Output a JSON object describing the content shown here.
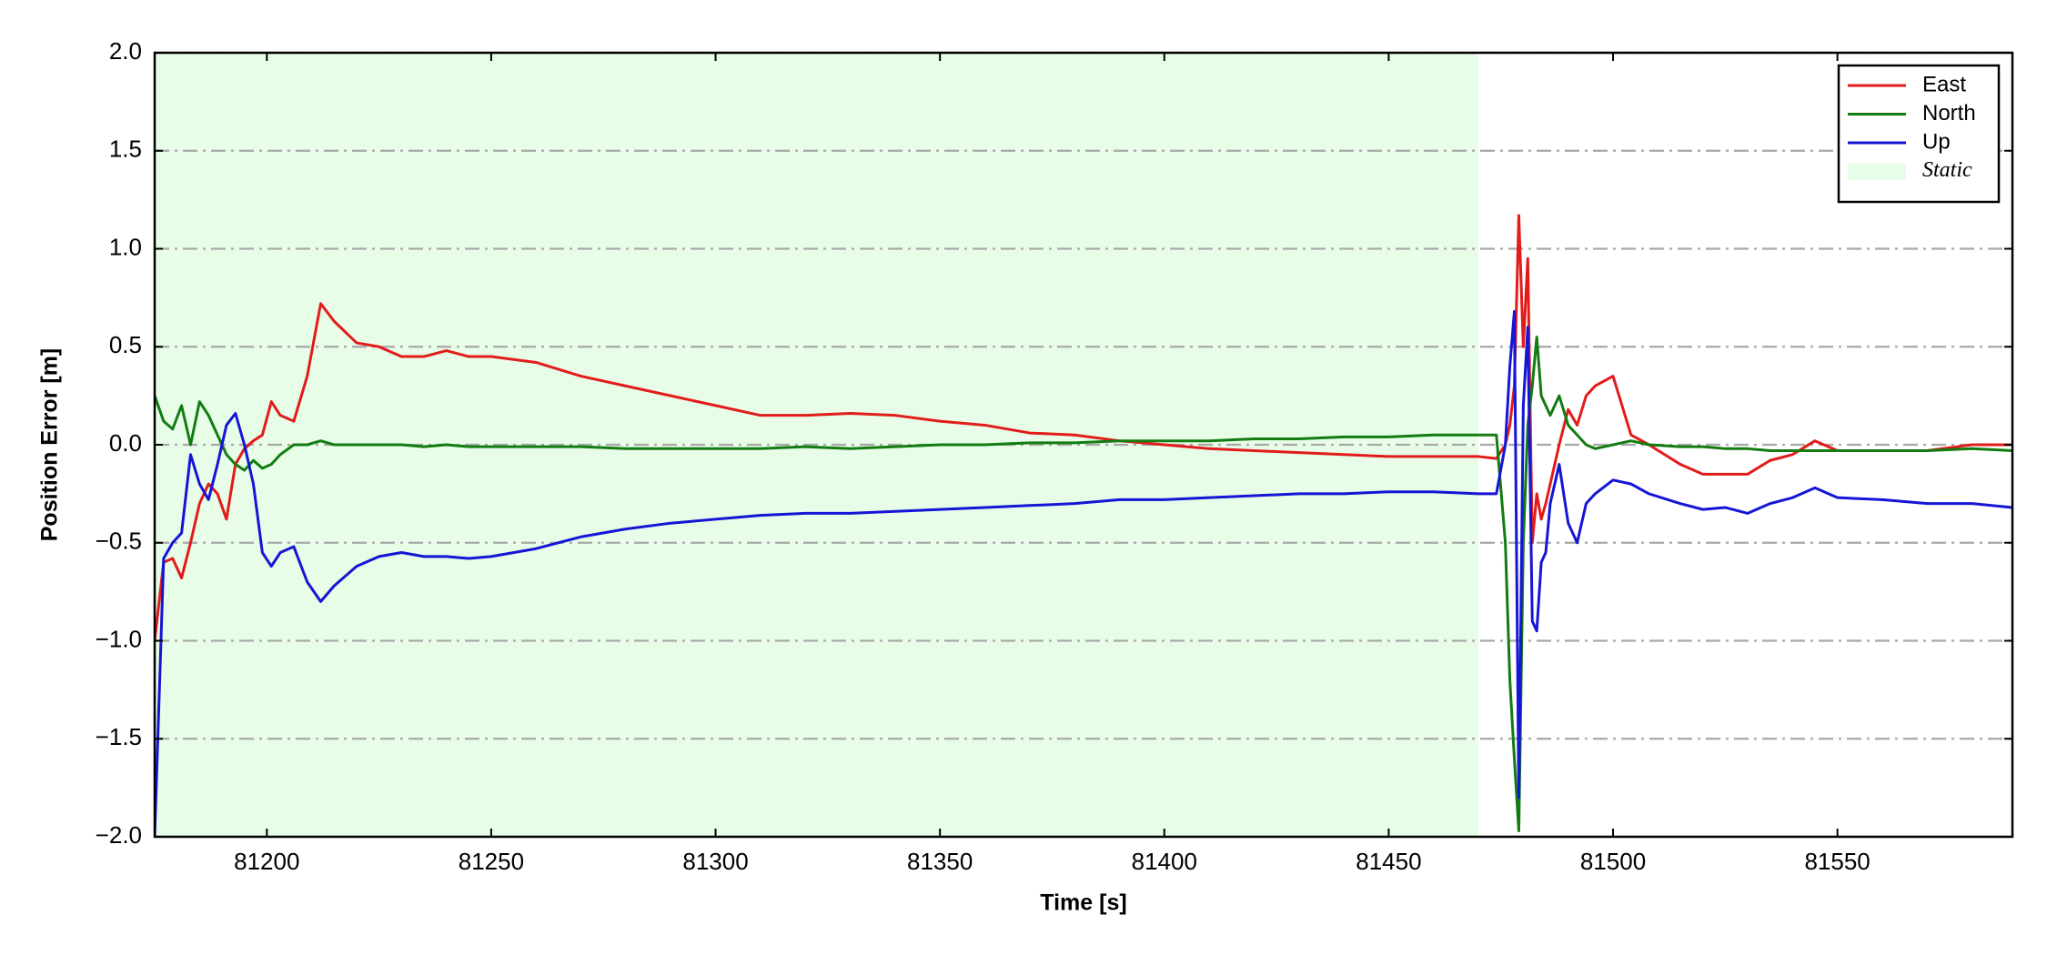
{
  "chart_data": {
    "type": "line",
    "xlabel": "Time [s]",
    "ylabel": "Position Error [m]",
    "x": [
      81175,
      81177,
      81179,
      81181,
      81183,
      81185,
      81187,
      81189,
      81191,
      81193,
      81195,
      81197,
      81199,
      81201,
      81203,
      81206,
      81209,
      81212,
      81215,
      81220,
      81225,
      81230,
      81235,
      81240,
      81245,
      81250,
      81260,
      81270,
      81280,
      81290,
      81300,
      81310,
      81320,
      81330,
      81340,
      81350,
      81360,
      81370,
      81380,
      81390,
      81400,
      81410,
      81420,
      81430,
      81440,
      81450,
      81460,
      81470,
      81474,
      81476,
      81477,
      81478,
      81479,
      81480,
      81481,
      81482,
      81483,
      81484,
      81485,
      81486,
      81488,
      81490,
      81492,
      81494,
      81496,
      81500,
      81504,
      81508,
      81515,
      81520,
      81525,
      81530,
      81535,
      81540,
      81545,
      81550,
      81560,
      81570,
      81580,
      81589
    ],
    "series": [
      {
        "name": "East",
        "color": "#e21b1b",
        "values": [
          -1.0,
          -0.6,
          -0.58,
          -0.68,
          -0.5,
          -0.3,
          -0.2,
          -0.25,
          -0.38,
          -0.1,
          -0.02,
          0.02,
          0.05,
          0.22,
          0.15,
          0.12,
          0.35,
          0.72,
          0.63,
          0.52,
          0.5,
          0.45,
          0.45,
          0.48,
          0.45,
          0.45,
          0.42,
          0.35,
          0.3,
          0.25,
          0.2,
          0.15,
          0.15,
          0.16,
          0.15,
          0.12,
          0.1,
          0.06,
          0.05,
          0.02,
          0.0,
          -0.02,
          -0.03,
          -0.04,
          -0.05,
          -0.06,
          -0.06,
          -0.06,
          -0.07,
          0.0,
          0.1,
          0.3,
          1.17,
          0.5,
          0.95,
          -0.5,
          -0.25,
          -0.38,
          -0.3,
          -0.2,
          0.0,
          0.18,
          0.1,
          0.25,
          0.3,
          0.35,
          0.05,
          0.0,
          -0.1,
          -0.15,
          -0.15,
          -0.15,
          -0.08,
          -0.05,
          0.02,
          -0.03,
          -0.03,
          -0.03,
          0.0,
          0.0
        ]
      },
      {
        "name": "North",
        "color": "#127c12",
        "values": [
          0.25,
          0.12,
          0.08,
          0.2,
          0.0,
          0.22,
          0.15,
          0.05,
          -0.05,
          -0.1,
          -0.13,
          -0.08,
          -0.12,
          -0.1,
          -0.05,
          0.0,
          0.0,
          0.02,
          0.0,
          0.0,
          0.0,
          0.0,
          -0.01,
          0.0,
          -0.01,
          -0.01,
          -0.01,
          -0.01,
          -0.02,
          -0.02,
          -0.02,
          -0.02,
          -0.01,
          -0.02,
          -0.01,
          0.0,
          0.0,
          0.01,
          0.01,
          0.02,
          0.02,
          0.02,
          0.03,
          0.03,
          0.04,
          0.04,
          0.05,
          0.05,
          0.05,
          -0.5,
          -1.2,
          -1.6,
          -1.97,
          -0.5,
          0.1,
          0.3,
          0.55,
          0.25,
          0.2,
          0.15,
          0.25,
          0.1,
          0.05,
          0.0,
          -0.02,
          0.0,
          0.02,
          0.0,
          -0.01,
          -0.01,
          -0.02,
          -0.02,
          -0.03,
          -0.03,
          -0.03,
          -0.03,
          -0.03,
          -0.03,
          -0.02,
          -0.03
        ]
      },
      {
        "name": "Up",
        "color": "#1515d6",
        "values": [
          -2.0,
          -0.58,
          -0.5,
          -0.45,
          -0.05,
          -0.2,
          -0.28,
          -0.1,
          0.1,
          0.16,
          0.0,
          -0.2,
          -0.55,
          -0.62,
          -0.55,
          -0.52,
          -0.7,
          -0.8,
          -0.72,
          -0.62,
          -0.57,
          -0.55,
          -0.57,
          -0.57,
          -0.58,
          -0.57,
          -0.53,
          -0.47,
          -0.43,
          -0.4,
          -0.38,
          -0.36,
          -0.35,
          -0.35,
          -0.34,
          -0.33,
          -0.32,
          -0.31,
          -0.3,
          -0.28,
          -0.28,
          -0.27,
          -0.26,
          -0.25,
          -0.25,
          -0.24,
          -0.24,
          -0.25,
          -0.25,
          0.0,
          0.4,
          0.68,
          -1.8,
          0.2,
          0.6,
          -0.9,
          -0.95,
          -0.6,
          -0.55,
          -0.3,
          -0.1,
          -0.4,
          -0.5,
          -0.3,
          -0.25,
          -0.18,
          -0.2,
          -0.25,
          -0.3,
          -0.33,
          -0.32,
          -0.35,
          -0.3,
          -0.27,
          -0.22,
          -0.27,
          -0.28,
          -0.3,
          -0.3,
          -0.32
        ]
      }
    ],
    "static_region": {
      "name": "Static",
      "x_range": [
        81175,
        81470
      ],
      "color": "#e8fde8"
    },
    "xlim": [
      81175,
      81589
    ],
    "ylim": [
      -2.0,
      2.0
    ],
    "xticks": [
      81200,
      81250,
      81300,
      81350,
      81400,
      81450,
      81500,
      81550
    ],
    "yticks": [
      {
        "value": -2.0,
        "label": "−2.0"
      },
      {
        "value": -1.5,
        "label": "−1.5"
      },
      {
        "value": -1.0,
        "label": "−1.0"
      },
      {
        "value": -0.5,
        "label": "−0.5"
      },
      {
        "value": 0.0,
        "label": "0.0"
      },
      {
        "value": 0.5,
        "label": "0.5"
      },
      {
        "value": 1.0,
        "label": "1.0"
      },
      {
        "value": 1.5,
        "label": "1.5"
      },
      {
        "value": 2.0,
        "label": "2.0"
      }
    ],
    "grid": true,
    "legend": "upper right"
  }
}
